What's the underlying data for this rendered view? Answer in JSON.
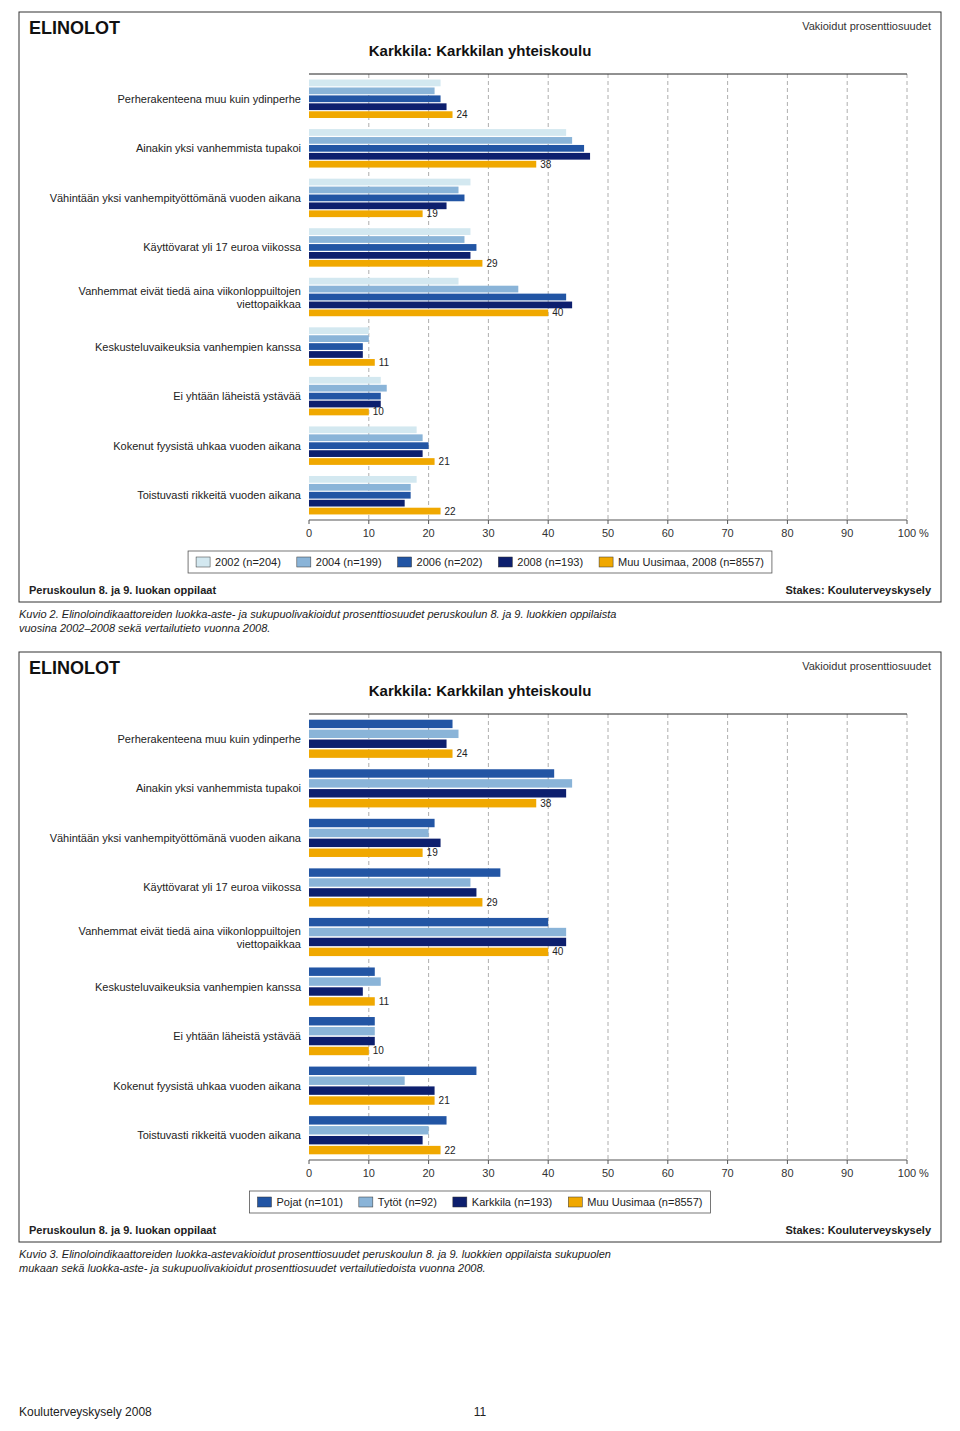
{
  "chart_data": [
    {
      "type": "bar",
      "orientation": "horizontal",
      "title": "Karkkila: Karkkilan yhteiskoulu",
      "xlabel": "%",
      "annotations": [
        "ELINOLOT",
        "Vakioidut prosenttiosuudet",
        "Peruskoulun 8. ja 9. luokan oppilaat",
        "Stakes: Kouluterveyskysely",
        "Kuvio 2. Elinoloindikaattoreiden luokka-aste- ja sukupuolivakioidut prosenttiosuudet peruskoulun 8. ja 9. luokkien oppilaista\nvuosina 2002–2008 sekä vertailutieto vuonna 2008."
      ],
      "categories": [
        "Perherakenteena muu kuin ydinperhe",
        "Ainakin yksi vanhemmista tupakoi",
        "Vähintään yksi vanhempityöttömänä vuoden aikana",
        "Käyttövarat yli 17 euroa viikossa",
        "Vanhemmat eivät tiedä aina viikonloppuiltojen\nviettopaikkaa",
        "Keskusteluvaikeuksia vanhempien kanssa",
        "Ei yhtään läheistä ystävää",
        "Kokenut fyysistä uhkaa vuoden aikana",
        "Toistuvasti rikkeitä vuoden aikana"
      ],
      "series": [
        {
          "name": "2002 (n=204)",
          "color": "#d3e8f0",
          "values": [
            22,
            43,
            27,
            27,
            25,
            10,
            12,
            18,
            18
          ]
        },
        {
          "name": "2004 (n=199)",
          "color": "#8ab4d8",
          "values": [
            21,
            44,
            25,
            26,
            35,
            10,
            13,
            19,
            17
          ]
        },
        {
          "name": "2006 (n=202)",
          "color": "#2255a4",
          "values": [
            22,
            46,
            26,
            28,
            43,
            9,
            12,
            20,
            17
          ]
        },
        {
          "name": "2008 (n=193)",
          "color": "#0d1f6e",
          "values": [
            23,
            47,
            23,
            27,
            44,
            9,
            12,
            19,
            16
          ]
        },
        {
          "name": "Muu Uusimaa, 2008 (n=8557)",
          "color": "#f0a800",
          "values": [
            24,
            38,
            19,
            29,
            40,
            11,
            10,
            21,
            22
          ],
          "data_labels": true
        }
      ],
      "xlim": [
        0,
        100
      ],
      "xticks": [
        0,
        10,
        20,
        30,
        40,
        50,
        60,
        70,
        80,
        90,
        100
      ],
      "grid": true,
      "legend": "bottom"
    },
    {
      "type": "bar",
      "orientation": "horizontal",
      "title": "Karkkila: Karkkilan yhteiskoulu",
      "xlabel": "%",
      "annotations": [
        "ELINOLOT",
        "Vakioidut prosenttiosuudet",
        "Peruskoulun 8. ja 9. luokan oppilaat",
        "Stakes: Kouluterveyskysely",
        "Kuvio 3. Elinoloindikaattoreiden luokka-astevakioidut prosenttiosuudet peruskoulun 8. ja 9. luokkien oppilaista sukupuolen\nmukaan sekä luokka-aste- ja sukupuolivakioidut prosenttiosuudet vertailutiedoista vuonna 2008."
      ],
      "categories": [
        "Perherakenteena muu kuin ydinperhe",
        "Ainakin yksi vanhemmista tupakoi",
        "Vähintään yksi vanhempityöttömänä vuoden aikana",
        "Käyttövarat yli 17 euroa viikossa",
        "Vanhemmat eivät tiedä aina viikonloppuiltojen\nviettopaikkaa",
        "Keskusteluvaikeuksia vanhempien kanssa",
        "Ei yhtään läheistä ystävää",
        "Kokenut fyysistä uhkaa vuoden aikana",
        "Toistuvasti rikkeitä vuoden aikana"
      ],
      "series": [
        {
          "name": "Pojat (n=101)",
          "color": "#2255a4",
          "values": [
            24,
            41,
            21,
            32,
            40,
            11,
            11,
            28,
            23
          ]
        },
        {
          "name": "Tytöt (n=92)",
          "color": "#8ab4d8",
          "values": [
            25,
            44,
            20,
            27,
            43,
            12,
            11,
            16,
            20
          ]
        },
        {
          "name": "Karkkila (n=193)",
          "color": "#0d1f6e",
          "values": [
            23,
            43,
            22,
            28,
            43,
            9,
            11,
            21,
            19
          ]
        },
        {
          "name": "Muu Uusimaa (n=8557)",
          "color": "#f0a800",
          "values": [
            24,
            38,
            19,
            29,
            40,
            11,
            10,
            21,
            22
          ],
          "data_labels": true
        }
      ],
      "xlim": [
        0,
        100
      ],
      "xticks": [
        0,
        10,
        20,
        30,
        40,
        50,
        60,
        70,
        80,
        90,
        100
      ],
      "grid": true,
      "legend": "bottom"
    }
  ],
  "page_footer": [
    "Kouluterveyskysely 2008",
    "11"
  ]
}
